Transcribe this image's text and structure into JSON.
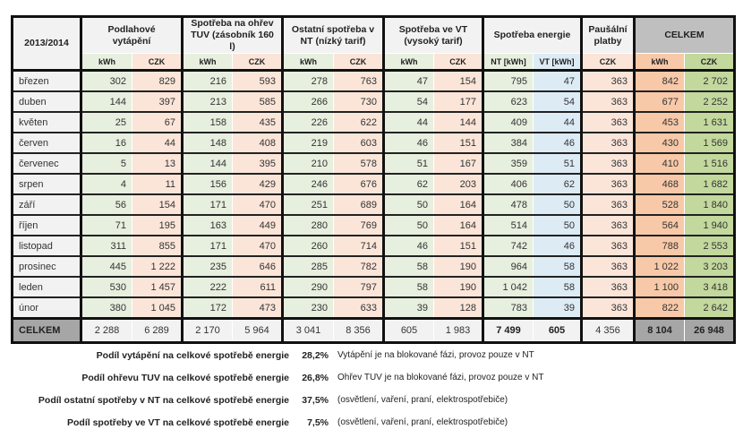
{
  "table": {
    "year": "2013/2014",
    "groups": [
      "Podlahové vytápění",
      "Spotřeba na ohřev TUV (zásobník 160 l)",
      "Ostatní spotřeba v NT (nízký tarif)",
      "Spotřeba ve VT (vysoký tarif)",
      "Spotřeba energie",
      "Paušální platby",
      "CELKEM"
    ],
    "subheaders": [
      "kWh",
      "CZK",
      "kWh",
      "CZK",
      "kWh",
      "CZK",
      "kWh",
      "CZK",
      "NT [kWh]",
      "VT [kWh]",
      "CZK",
      "kWh",
      "CZK"
    ],
    "rows": [
      [
        "březen",
        "302",
        "829",
        "216",
        "593",
        "278",
        "763",
        "47",
        "154",
        "795",
        "47",
        "363",
        "842",
        "2 702"
      ],
      [
        "duben",
        "144",
        "397",
        "213",
        "585",
        "266",
        "730",
        "54",
        "177",
        "623",
        "54",
        "363",
        "677",
        "2 252"
      ],
      [
        "květen",
        "25",
        "67",
        "158",
        "435",
        "226",
        "622",
        "44",
        "144",
        "409",
        "44",
        "363",
        "453",
        "1 631"
      ],
      [
        "červen",
        "16",
        "44",
        "148",
        "408",
        "219",
        "603",
        "46",
        "151",
        "384",
        "46",
        "363",
        "430",
        "1 569"
      ],
      [
        "červenec",
        "5",
        "13",
        "144",
        "395",
        "210",
        "578",
        "51",
        "167",
        "359",
        "51",
        "363",
        "410",
        "1 516"
      ],
      [
        "srpen",
        "4",
        "11",
        "156",
        "429",
        "246",
        "676",
        "62",
        "203",
        "406",
        "62",
        "363",
        "468",
        "1 682"
      ],
      [
        "září",
        "56",
        "154",
        "171",
        "470",
        "251",
        "689",
        "50",
        "164",
        "478",
        "50",
        "363",
        "528",
        "1 840"
      ],
      [
        "říjen",
        "71",
        "195",
        "163",
        "449",
        "280",
        "769",
        "50",
        "164",
        "514",
        "50",
        "363",
        "564",
        "1 940"
      ],
      [
        "listopad",
        "311",
        "855",
        "171",
        "470",
        "260",
        "714",
        "46",
        "151",
        "742",
        "46",
        "363",
        "788",
        "2 553"
      ],
      [
        "prosinec",
        "445",
        "1 222",
        "235",
        "646",
        "285",
        "782",
        "58",
        "190",
        "964",
        "58",
        "363",
        "1 022",
        "3 203"
      ],
      [
        "leden",
        "530",
        "1 457",
        "222",
        "611",
        "290",
        "797",
        "58",
        "190",
        "1 042",
        "58",
        "363",
        "1 100",
        "3 418"
      ],
      [
        "únor",
        "380",
        "1 045",
        "172",
        "473",
        "230",
        "633",
        "39",
        "128",
        "783",
        "39",
        "363",
        "822",
        "2 642"
      ]
    ],
    "total": [
      "CELKEM",
      "2 288",
      "6 289",
      "2 170",
      "5 964",
      "3 041",
      "8 356",
      "605",
      "1 983",
      "7 499",
      "605",
      "4 356",
      "8 104",
      "26 948"
    ]
  },
  "colors": {
    "kwh": "#e7efdf",
    "czk": "#fbe5d9",
    "vt": "#ddebf5",
    "total_kwh": "#f8c9a8",
    "total_czk": "#c3d89d",
    "header_gray": "#bfbfbf"
  },
  "notes": [
    {
      "label": "Podíl vytápění na celkové spotřebě energie",
      "pct": "28,2%",
      "note": "Vytápění je na blokované fázi, provoz pouze v NT"
    },
    {
      "label": "Podíl ohřevu TUV na celkové spotřebě energie",
      "pct": "26,8%",
      "note": "Ohřev TUV je na blokované fázi, provoz pouze v NT"
    },
    {
      "label": "Podíl ostatní spotřeby v NT na celkové spotřebě energie",
      "pct": "37,5%",
      "note": "(osvětlení, vaření, praní, elektrospotřebiče)"
    },
    {
      "label": "Podíl spotřeby ve VT na celkové spotřebě energie",
      "pct": "7,5%",
      "note": "(osvětlení, vaření, praní, elektrospotřebiče)"
    }
  ]
}
